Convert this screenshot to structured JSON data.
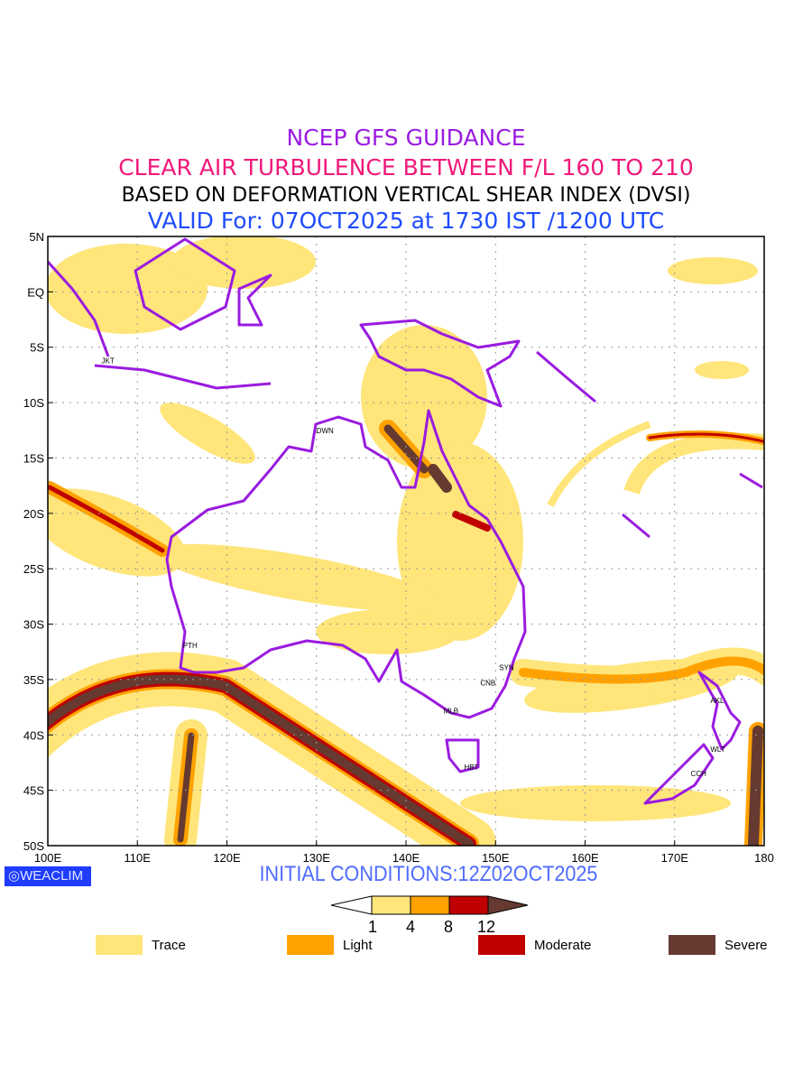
{
  "titles": {
    "line1": "NCEP GFS GUIDANCE",
    "line2": "CLEAR AIR TURBULENCE BETWEEN F/L 160 TO 210",
    "line3": "BASED ON DEFORMATION VERTICAL SHEAR INDEX (DVSI)",
    "line4": "VALID For: 07OCT2025 at 1730 IST /1200 UTC"
  },
  "axes": {
    "lat_labels": [
      "5N",
      "EQ",
      "5S",
      "10S",
      "15S",
      "20S",
      "25S",
      "30S",
      "35S",
      "40S",
      "45S",
      "50S"
    ],
    "lon_labels": [
      "100E",
      "110E",
      "120E",
      "130E",
      "140E",
      "150E",
      "160E",
      "170E",
      "180"
    ]
  },
  "cities": [
    {
      "code": "JKT",
      "lon": 106.8,
      "lat": -6.2
    },
    {
      "code": "DWN",
      "lon": 130.8,
      "lat": -12.5
    },
    {
      "code": "PTH",
      "lon": 115.9,
      "lat": -31.9
    },
    {
      "code": "SYN",
      "lon": 151.2,
      "lat": -33.9
    },
    {
      "code": "CNB",
      "lon": 149.1,
      "lat": -35.3
    },
    {
      "code": "MLB",
      "lon": 145.0,
      "lat": -37.8
    },
    {
      "code": "HBT",
      "lon": 147.3,
      "lat": -42.9
    },
    {
      "code": "AKL",
      "lon": 174.8,
      "lat": -36.9
    },
    {
      "code": "WLT",
      "lon": 174.8,
      "lat": -41.3
    },
    {
      "code": "CCH",
      "lon": 172.6,
      "lat": -43.5
    }
  ],
  "brand": "WEACLIM",
  "initial_conditions": "INITIAL CONDITIONS:12Z02OCT2025",
  "colorbar": {
    "ticks": [
      "1",
      "4",
      "8",
      "12"
    ],
    "colors": [
      "#ffe57a",
      "#ffa200",
      "#c00000",
      "#663a30"
    ]
  },
  "legend": [
    {
      "label": "Trace",
      "color": "#ffe57a"
    },
    {
      "label": "Light",
      "color": "#ffa200"
    },
    {
      "label": "Moderate",
      "color": "#c00000"
    },
    {
      "label": "Severe",
      "color": "#663a30"
    }
  ],
  "colors": {
    "coast": "#9a1be0",
    "grid": "#999999"
  }
}
